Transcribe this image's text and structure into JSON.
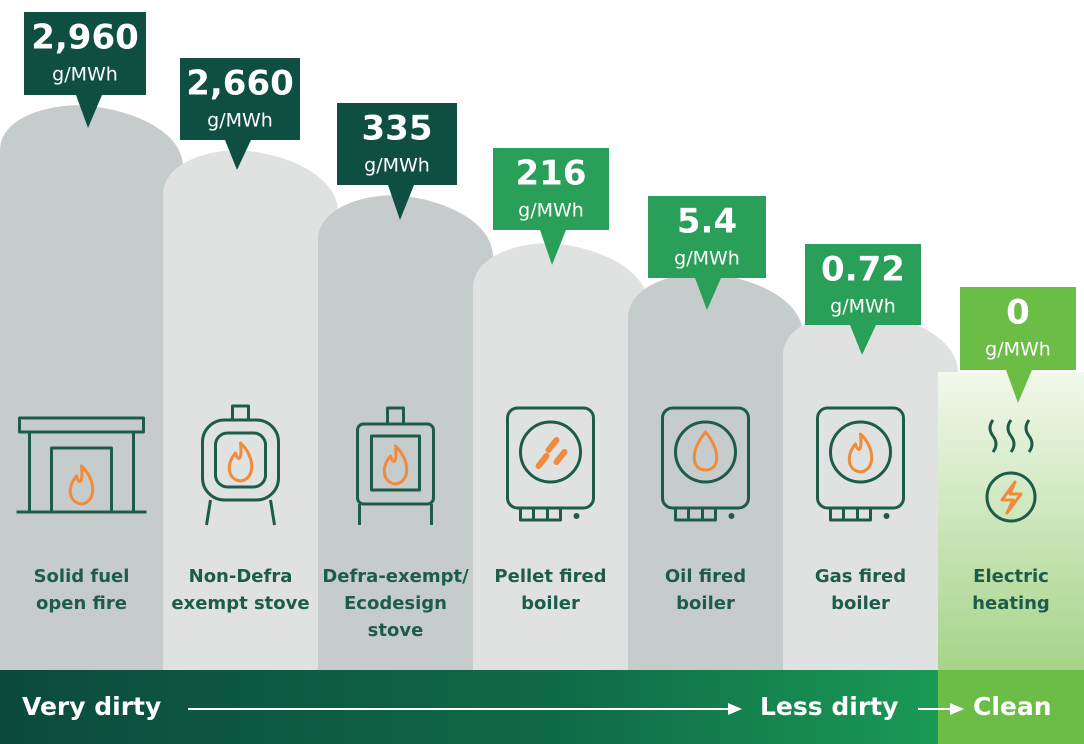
{
  "columns": [
    {
      "value": "2,960",
      "unit": "g/MWh",
      "label": [
        "Solid fuel",
        "open fire"
      ]
    },
    {
      "value": "2,660",
      "unit": "g/MWh",
      "label": [
        "Non-Defra",
        "exempt stove"
      ]
    },
    {
      "value": "335",
      "unit": "g/MWh",
      "label": [
        "Defra-exempt/",
        "Ecodesign",
        "stove"
      ]
    },
    {
      "value": "216",
      "unit": "g/MWh",
      "label": [
        "Pellet fired",
        "boiler"
      ]
    },
    {
      "value": "5.4",
      "unit": "g/MWh",
      "label": [
        "Oil fired",
        "boiler"
      ]
    },
    {
      "value": "0.72",
      "unit": "g/MWh",
      "label": [
        "Gas fired",
        "boiler"
      ]
    },
    {
      "value": "0",
      "unit": "g/MWh",
      "label": [
        "Electric",
        "heating"
      ]
    }
  ],
  "scale": {
    "left": "Very dirty",
    "middle": "Less dirty",
    "right": "Clean"
  }
}
